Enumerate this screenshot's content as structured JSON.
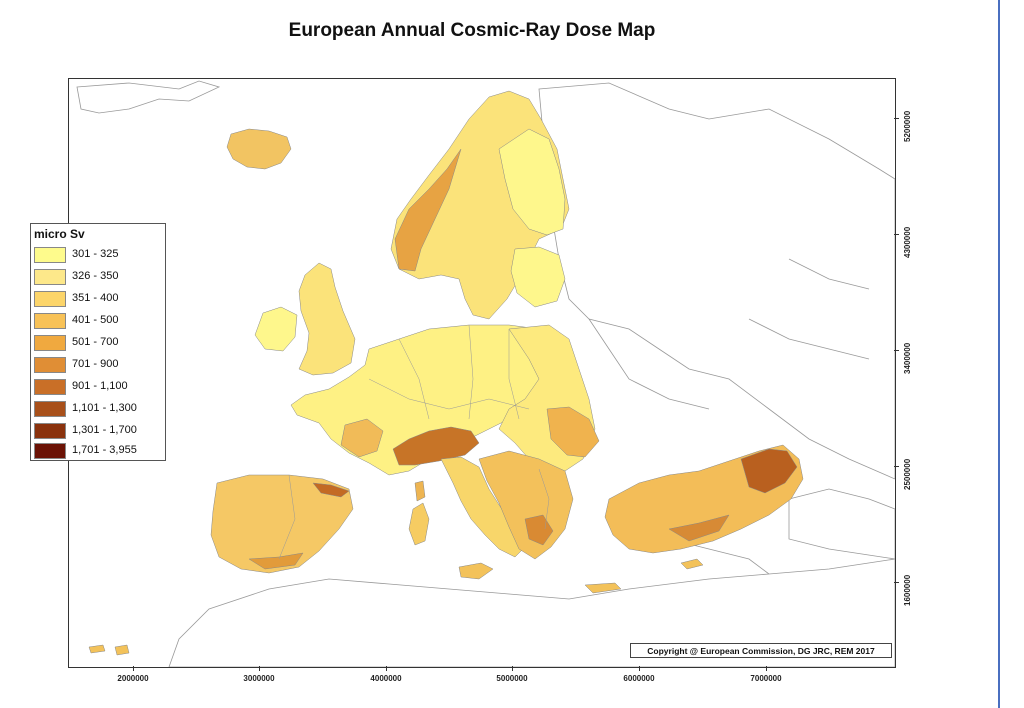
{
  "title": "European Annual Cosmic-Ray Dose Map",
  "legend": {
    "title": "micro Sv",
    "items": [
      {
        "label": "301 - 325",
        "color": "#fefb8c"
      },
      {
        "label": "326 - 350",
        "color": "#fde88a"
      },
      {
        "label": "351 - 400",
        "color": "#fcd56a"
      },
      {
        "label": "401 - 500",
        "color": "#f8c257"
      },
      {
        "label": "501 - 700",
        "color": "#f0a93f"
      },
      {
        "label": "701 - 900",
        "color": "#e08e35"
      },
      {
        "label": "901 - 1,100",
        "color": "#c96f27"
      },
      {
        "label": "1,101 - 1,300",
        "color": "#a8501a"
      },
      {
        "label": "1,301 - 1,700",
        "color": "#8a320d"
      },
      {
        "label": "1,701 - 3,955",
        "color": "#6b1205"
      }
    ]
  },
  "axes": {
    "x_ticks": [
      "2000000",
      "3000000",
      "4000000",
      "5000000",
      "6000000",
      "7000000"
    ],
    "y_ticks": [
      "5200000",
      "4300000",
      "3400000",
      "2500000",
      "1600000"
    ]
  },
  "copyright": "Copyright @ European Commission, DG JRC, REM 2017",
  "colors": {
    "land_base": "#fdf27a",
    "land_mid": "#f6cf5c",
    "land_high": "#e8a740",
    "mountain": "#b9601f",
    "non_data_land": "#ffffff",
    "border_line": "#999999"
  }
}
